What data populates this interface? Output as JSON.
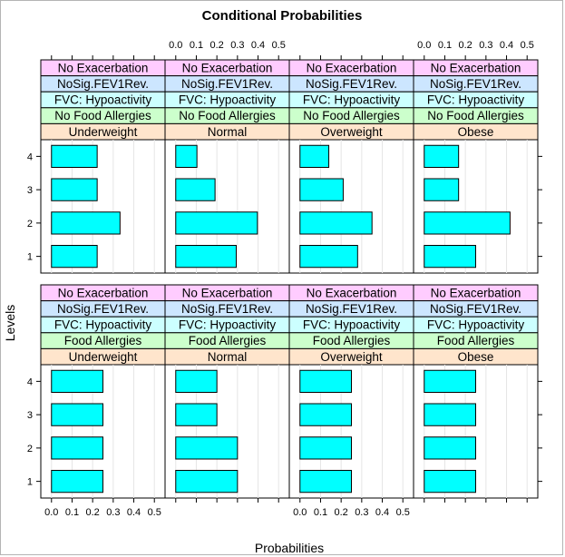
{
  "chart_data": {
    "type": "bar",
    "orientation": "horizontal",
    "title": "Conditional Probabilities",
    "xlabel": "Probabilities",
    "ylabel": "Levels",
    "xlim": [
      0,
      0.5
    ],
    "x_ticks": [
      "0.0",
      "0.1",
      "0.2",
      "0.3",
      "0.4",
      "0.5"
    ],
    "categories": [
      "1",
      "2",
      "3",
      "4"
    ],
    "grid": true,
    "colors": {
      "bar": "#00ffff",
      "bar_stroke": "#000000",
      "grid": "#e6e6e6"
    },
    "strip_colors": [
      "#ffccff",
      "#cce6ff",
      "#ccffff",
      "#ccffcc",
      "#ffe5cc"
    ],
    "panels": [
      {
        "strips": [
          "No Exacerbation",
          "NoSig.FEV1Rev.",
          "FVC: Hypoactivity",
          "No Food Allergies",
          "Underweight"
        ],
        "values": [
          0.222,
          0.333,
          0.222,
          0.222
        ]
      },
      {
        "strips": [
          "No Exacerbation",
          "NoSig.FEV1Rev.",
          "FVC: Hypoactivity",
          "No Food Allergies",
          "Normal"
        ],
        "values": [
          0.294,
          0.397,
          0.191,
          0.103
        ]
      },
      {
        "strips": [
          "No Exacerbation",
          "NoSig.FEV1Rev.",
          "FVC: Hypoactivity",
          "No Food Allergies",
          "Overweight"
        ],
        "values": [
          0.28,
          0.35,
          0.21,
          0.14
        ]
      },
      {
        "strips": [
          "No Exacerbation",
          "NoSig.FEV1Rev.",
          "FVC: Hypoactivity",
          "No Food Allergies",
          "Obese"
        ],
        "values": [
          0.25,
          0.417,
          0.167,
          0.167
        ]
      },
      {
        "strips": [
          "No Exacerbation",
          "NoSig.FEV1Rev.",
          "FVC: Hypoactivity",
          "Food Allergies",
          "Underweight"
        ],
        "values": [
          0.25,
          0.25,
          0.25,
          0.25
        ]
      },
      {
        "strips": [
          "No Exacerbation",
          "NoSig.FEV1Rev.",
          "FVC: Hypoactivity",
          "Food Allergies",
          "Normal"
        ],
        "values": [
          0.3,
          0.3,
          0.2,
          0.2
        ]
      },
      {
        "strips": [
          "No Exacerbation",
          "NoSig.FEV1Rev.",
          "FVC: Hypoactivity",
          "Food Allergies",
          "Overweight"
        ],
        "values": [
          0.25,
          0.25,
          0.25,
          0.25
        ]
      },
      {
        "strips": [
          "No Exacerbation",
          "NoSig.FEV1Rev.",
          "FVC: Hypoactivity",
          "Food Allergies",
          "Obese"
        ],
        "values": [
          0.25,
          0.25,
          0.25,
          0.25
        ]
      }
    ]
  }
}
